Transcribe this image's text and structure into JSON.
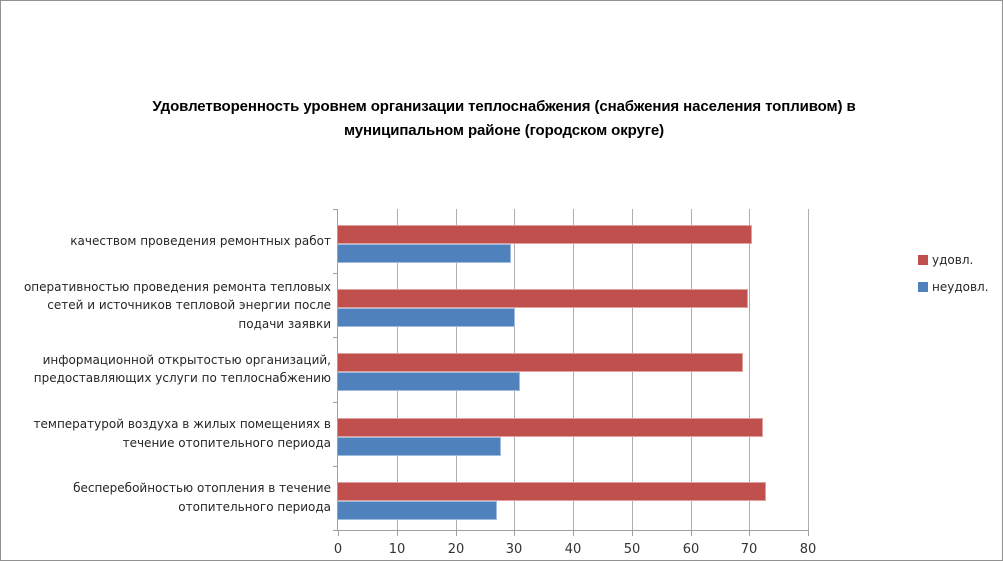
{
  "chart_data": {
    "type": "bar",
    "orientation": "horizontal",
    "title": "Удовлетворенность уровнем организации теплоснабжения (снабжения населения топливом) в муниципальном районе (городском округе)",
    "categories": [
      "качеством проведения ремонтных работ",
      "оперативностью проведения ремонта тепловых сетей и источников тепловой энергии после подачи заявки",
      "информационной открытостью организаций, предоставляющих услуги по теплоснабжению",
      "температурой воздуха в жилых помещениях в течение отопительного периода",
      "бесперебойностью отопления в течение отопительного периода"
    ],
    "series": [
      {
        "name": "удовл.",
        "color": "#C0504D",
        "border_color": "#E0A09E",
        "values": [
          70.5,
          69.8,
          69.0,
          72.3,
          72.9
        ]
      },
      {
        "name": "неудовл.",
        "color": "#4F81BD",
        "border_color": "#9FBBDE",
        "values": [
          29.5,
          30.2,
          31.0,
          27.7,
          27.1
        ]
      }
    ],
    "xlabel": "",
    "ylabel": "",
    "xlim": [
      0,
      80
    ],
    "x_ticks": [
      0,
      10,
      20,
      30,
      40,
      50,
      60,
      70,
      80
    ],
    "grid": "vertical-only",
    "legend_position": "right",
    "colors": {
      "gridline": "#ADADAD",
      "axis": "#A0A0A0",
      "tick_text": "#333333",
      "category_text": "#262626",
      "title_text": "#000000",
      "background": "#FFFFFF",
      "frame_border": "#919191"
    }
  }
}
